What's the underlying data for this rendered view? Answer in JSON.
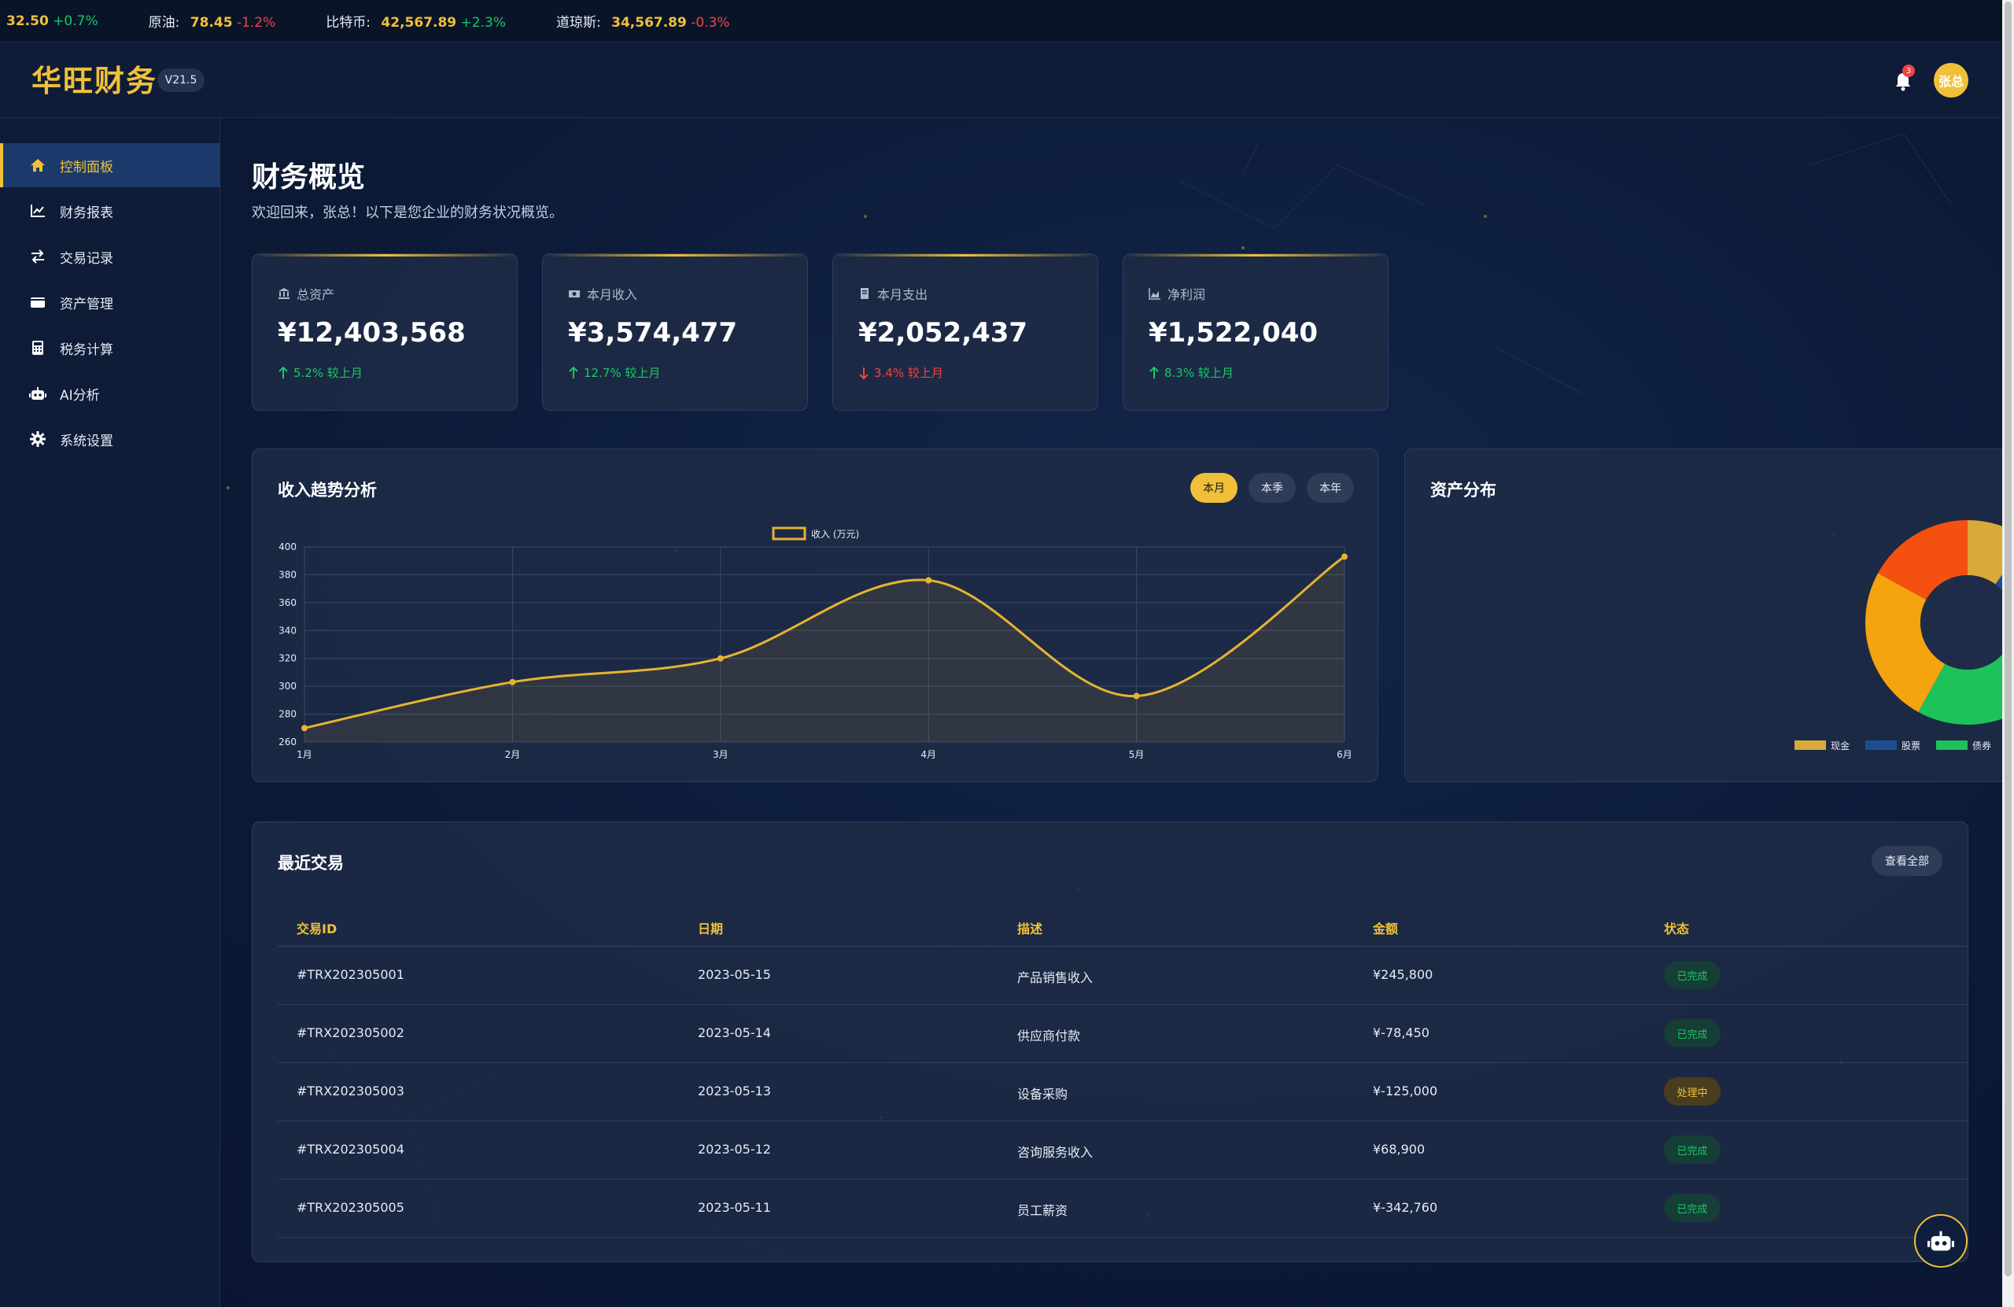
{
  "ticker": [
    {
      "name": "",
      "value": "32.50",
      "change": "+0.7%",
      "dir": "up"
    },
    {
      "name": "原油:",
      "value": "78.45",
      "change": "-1.2%",
      "dir": "down"
    },
    {
      "name": "比特币:",
      "value": "42,567.89",
      "change": "+2.3%",
      "dir": "up"
    },
    {
      "name": "道琼斯:",
      "value": "34,567.89",
      "change": "-0.3%",
      "dir": "down"
    }
  ],
  "header": {
    "logo": "华旺财务",
    "version": "V21.5",
    "notification_count": "3",
    "avatar_text": "张总"
  },
  "sidebar": {
    "items": [
      {
        "label": "控制面板",
        "icon": "home-icon",
        "active": true
      },
      {
        "label": "财务报表",
        "icon": "chart-line-icon"
      },
      {
        "label": "交易记录",
        "icon": "exchange-icon"
      },
      {
        "label": "资产管理",
        "icon": "wallet-icon"
      },
      {
        "label": "税务计算",
        "icon": "calculator-icon"
      },
      {
        "label": "AI分析",
        "icon": "robot-icon"
      },
      {
        "label": "系统设置",
        "icon": "gear-icon"
      }
    ]
  },
  "page": {
    "title": "财务概览",
    "subtitle": "欢迎回来，张总！以下是您企业的财务状况概览。"
  },
  "stats": [
    {
      "label": "总资产",
      "icon": "bank-icon",
      "value": "¥12,403,568",
      "change": "5.2% 较上月",
      "dir": "up"
    },
    {
      "label": "本月收入",
      "icon": "money-icon",
      "value": "¥3,574,477",
      "change": "12.7% 较上月",
      "dir": "up"
    },
    {
      "label": "本月支出",
      "icon": "receipt-icon",
      "value": "¥2,052,437",
      "change": "3.4% 较上月",
      "dir": "down"
    },
    {
      "label": "净利润",
      "icon": "chart-area-icon",
      "value": "¥1,522,040",
      "change": "8.3% 较上月",
      "dir": "up"
    }
  ],
  "income_panel": {
    "title": "收入趋势分析",
    "buttons": [
      "本月",
      "本季",
      "本年"
    ],
    "active_button": "本月"
  },
  "asset_panel": {
    "title": "资产分布"
  },
  "chart_data": [
    {
      "type": "line",
      "title": "",
      "legend": [
        "收入 (万元)"
      ],
      "categories": [
        "1月",
        "2月",
        "3月",
        "4月",
        "5月",
        "6月"
      ],
      "series": [
        {
          "name": "收入 (万元)",
          "values": [
            270,
            303,
            320,
            376,
            293,
            393
          ]
        }
      ],
      "ylim": [
        260,
        400
      ],
      "yticks": [
        260,
        280,
        300,
        320,
        340,
        360,
        380,
        400
      ],
      "grid": true,
      "color": "#e6b432"
    },
    {
      "type": "pie",
      "title": "",
      "legend_position": "bottom",
      "slices": [
        {
          "name": "现金",
          "value": 10,
          "color": "#d9a93a"
        },
        {
          "name": "股票",
          "value": 18,
          "color": "#1f4e8f"
        },
        {
          "name": "债券",
          "value": 30,
          "color": "#1ec25a"
        },
        {
          "name": "",
          "value": 25,
          "color": "#f5a30f"
        },
        {
          "name": "",
          "value": 17,
          "color": "#f4500f"
        }
      ]
    }
  ],
  "transactions": {
    "title": "最近交易",
    "view_all": "查看全部",
    "columns": [
      "交易ID",
      "日期",
      "描述",
      "金额",
      "状态"
    ],
    "rows": [
      {
        "id": "#TRX202305001",
        "date": "2023-05-15",
        "desc": "产品销售收入",
        "amount": "¥245,800",
        "status": "已完成",
        "state": "done"
      },
      {
        "id": "#TRX202305002",
        "date": "2023-05-14",
        "desc": "供应商付款",
        "amount": "¥-78,450",
        "status": "已完成",
        "state": "done"
      },
      {
        "id": "#TRX202305003",
        "date": "2023-05-13",
        "desc": "设备采购",
        "amount": "¥-125,000",
        "status": "处理中",
        "state": "pending"
      },
      {
        "id": "#TRX202305004",
        "date": "2023-05-12",
        "desc": "咨询服务收入",
        "amount": "¥68,900",
        "status": "已完成",
        "state": "done"
      },
      {
        "id": "#TRX202305005",
        "date": "2023-05-11",
        "desc": "员工薪资",
        "amount": "¥-342,760",
        "status": "已完成",
        "state": "done"
      }
    ]
  },
  "colors": {
    "accent": "#f0c039",
    "up": "#17c964",
    "down": "#ef4444",
    "bg": "#0b1730",
    "panel": "#1e2b46"
  }
}
